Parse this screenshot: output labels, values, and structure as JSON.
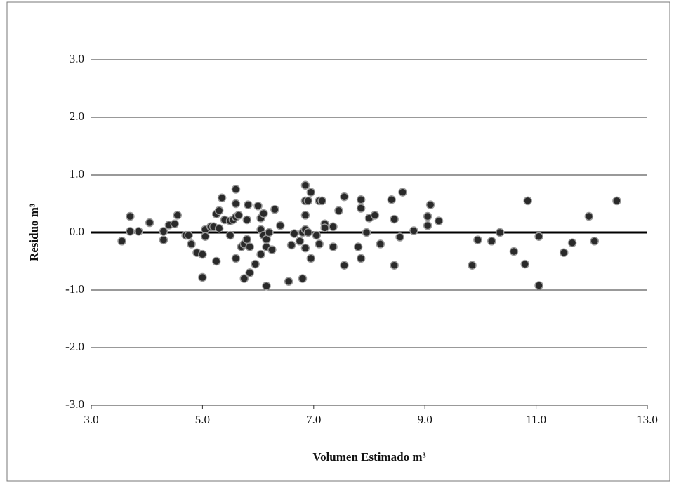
{
  "chart_data": {
    "type": "scatter",
    "xlabel": "Volumen Estimado m³",
    "ylabel": "Residuo m³",
    "xlim": [
      3,
      13
    ],
    "ylim": [
      -3,
      3
    ],
    "xticks": [
      {
        "value": 3,
        "label": "3.0"
      },
      {
        "value": 5,
        "label": "5.0"
      },
      {
        "value": 7,
        "label": "7.0"
      },
      {
        "value": 9,
        "label": "9.0"
      },
      {
        "value": 11,
        "label": "11.0"
      },
      {
        "value": 13,
        "label": "13.0"
      }
    ],
    "yticks": [
      {
        "value": -3,
        "label": "-3.0"
      },
      {
        "value": -2,
        "label": "-2.0"
      },
      {
        "value": -1,
        "label": "-1.0"
      },
      {
        "value": 0,
        "label": "0.0"
      },
      {
        "value": 1,
        "label": "1.0"
      },
      {
        "value": 2,
        "label": "2.0"
      },
      {
        "value": 3,
        "label": "3.0"
      }
    ],
    "grid": true,
    "series": [
      {
        "color": "#2a2a2a",
        "x": [
          3.55,
          3.7,
          3.7,
          3.85,
          4.05,
          4.3,
          4.3,
          4.4,
          4.5,
          4.55,
          4.7,
          4.75,
          4.8,
          4.9,
          5.0,
          5.0,
          5.05,
          5.05,
          5.15,
          5.2,
          5.25,
          5.25,
          5.3,
          5.3,
          5.35,
          5.4,
          5.5,
          5.5,
          5.55,
          5.6,
          5.6,
          5.6,
          5.6,
          5.65,
          5.7,
          5.75,
          5.75,
          5.8,
          5.8,
          5.82,
          5.85,
          5.85,
          5.95,
          6.0,
          6.05,
          6.05,
          6.05,
          6.1,
          6.1,
          6.15,
          6.15,
          6.15,
          6.2,
          6.25,
          6.3,
          6.4,
          6.55,
          6.6,
          6.65,
          6.75,
          6.8,
          6.8,
          6.85,
          6.85,
          6.85,
          6.85,
          6.85,
          6.9,
          6.9,
          6.95,
          6.95,
          7.05,
          7.1,
          7.1,
          7.15,
          7.2,
          7.2,
          7.35,
          7.35,
          7.45,
          7.55,
          7.55,
          7.8,
          7.85,
          7.85,
          7.85,
          7.95,
          8.0,
          8.1,
          8.2,
          8.4,
          8.45,
          8.45,
          8.55,
          8.6,
          8.8,
          9.05,
          9.05,
          9.1,
          9.25,
          9.85,
          9.95,
          10.2,
          10.35,
          10.6,
          10.8,
          10.85,
          11.05,
          11.05,
          11.5,
          11.65,
          11.95,
          12.05,
          12.45
        ],
        "values": [
          -0.15,
          0.28,
          0.02,
          0.02,
          0.17,
          0.02,
          -0.13,
          0.13,
          0.15,
          0.3,
          -0.05,
          -0.05,
          -0.2,
          -0.35,
          -0.38,
          -0.78,
          0.05,
          -0.07,
          0.1,
          0.1,
          -0.5,
          0.32,
          0.38,
          0.07,
          0.6,
          0.22,
          0.2,
          -0.05,
          0.22,
          0.5,
          0.75,
          0.27,
          -0.45,
          0.3,
          -0.25,
          -0.2,
          -0.8,
          0.22,
          -0.12,
          0.48,
          -0.25,
          -0.7,
          -0.55,
          0.46,
          0.25,
          0.05,
          -0.38,
          0.33,
          -0.05,
          -0.12,
          -0.25,
          -0.93,
          0.0,
          -0.3,
          0.4,
          0.12,
          -0.85,
          -0.22,
          -0.02,
          -0.15,
          -0.8,
          0.0,
          0.05,
          0.55,
          0.82,
          0.3,
          -0.27,
          0.0,
          0.55,
          0.7,
          -0.45,
          -0.05,
          0.55,
          -0.2,
          0.55,
          0.15,
          0.08,
          0.1,
          -0.25,
          0.38,
          0.62,
          -0.57,
          -0.25,
          0.57,
          0.42,
          -0.45,
          0.0,
          0.25,
          0.3,
          -0.2,
          0.57,
          0.23,
          -0.57,
          -0.08,
          0.7,
          0.03,
          0.28,
          0.12,
          0.48,
          0.2,
          -0.57,
          -0.13,
          -0.15,
          0.0,
          -0.33,
          -0.55,
          0.55,
          -0.07,
          -0.92,
          -0.35,
          -0.18,
          0.28,
          -0.15,
          0.55
        ]
      }
    ]
  }
}
